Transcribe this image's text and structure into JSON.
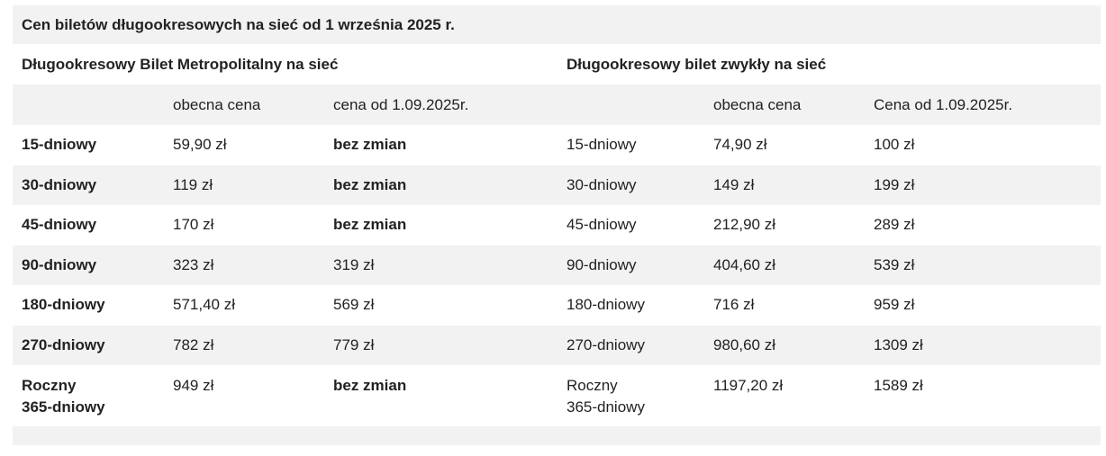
{
  "table": {
    "title": "Cen biletów długookresowych na sieć od 1 września 2025 r.",
    "group_left": "Długookresowy Bilet Metropolitalny na sieć",
    "group_right": "Długookresowy bilet zwykły na sieć",
    "col_headers": {
      "left_current": "obecna cena",
      "left_new": "cena od 1.09.2025r.",
      "right_current": "obecna cena",
      "right_new": "Cena od 1.09.2025r."
    },
    "rows": [
      {
        "ticket": "15-dniowy",
        "m_current": "59,90 zł",
        "m_new": "bez zmian",
        "z_ticket": "15-dniowy",
        "z_current": "74,90 zł",
        "z_new": "100 zł"
      },
      {
        "ticket": "30-dniowy",
        "m_current": "119 zł",
        "m_new": "bez zmian",
        "z_ticket": "30-dniowy",
        "z_current": "149 zł",
        "z_new": "199 zł"
      },
      {
        "ticket": "45-dniowy",
        "m_current": "170 zł",
        "m_new": "bez zmian",
        "z_ticket": "45-dniowy",
        "z_current": "212,90 zł",
        "z_new": "289 zł"
      },
      {
        "ticket": "90-dniowy",
        "m_current": "323 zł",
        "m_new": "319 zł",
        "z_ticket": "90-dniowy",
        "z_current": "404,60 zł",
        "z_new": "539 zł"
      },
      {
        "ticket": "180-dniowy",
        "m_current": "571,40 zł",
        "m_new": "569 zł",
        "z_ticket": "180-dniowy",
        "z_current": "716 zł",
        "z_new": "959 zł"
      },
      {
        "ticket": "270-dniowy",
        "m_current": "782 zł",
        "m_new": "779 zł",
        "z_ticket": "270-dniowy",
        "z_current": "980,60 zł",
        "z_new": "1309 zł"
      },
      {
        "ticket_line1": "Roczny",
        "ticket_line2": "365-dniowy",
        "m_current": "949 zł",
        "m_new": "bez zmian",
        "z_ticket_line1": "Roczny",
        "z_ticket_line2": "365-dniowy",
        "z_current": "1197,20 zł",
        "z_new": "1589 zł"
      }
    ]
  }
}
